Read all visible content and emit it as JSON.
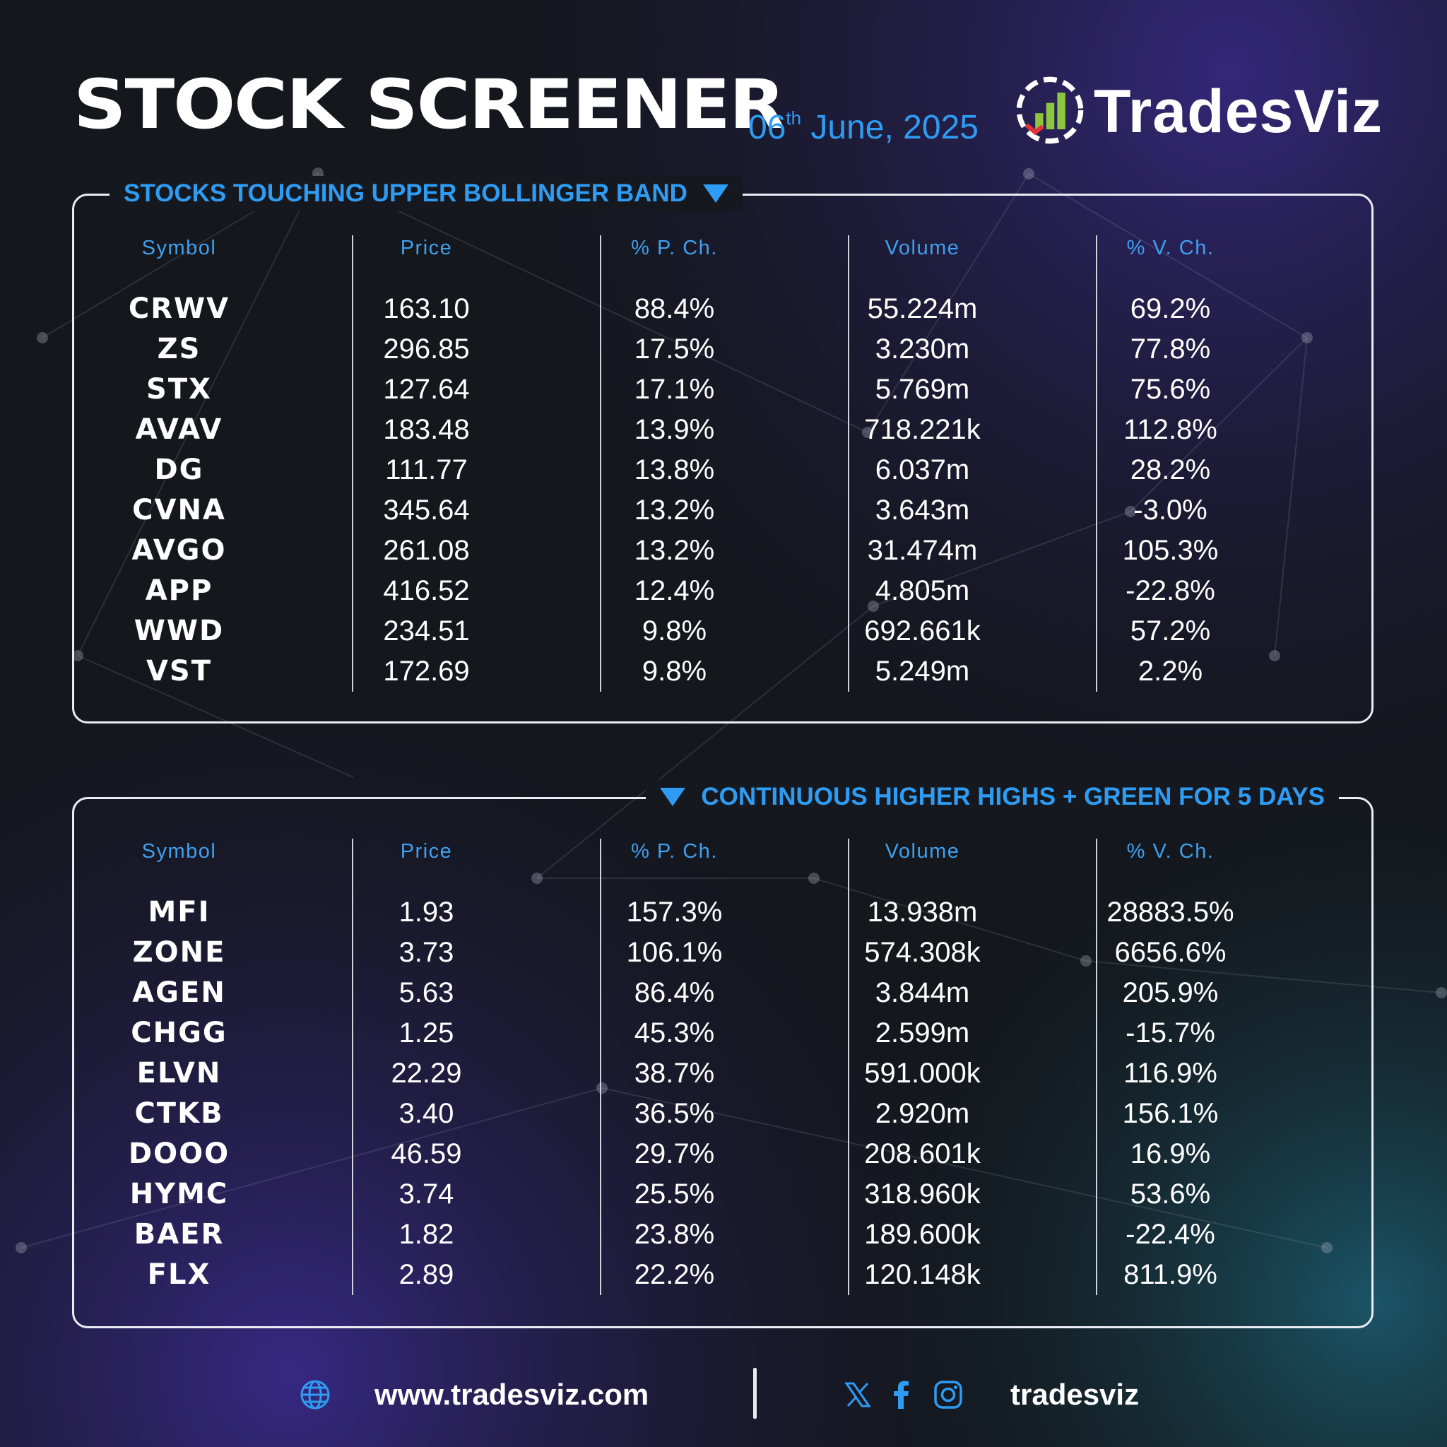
{
  "header": {
    "title": "STOCK SCREENER",
    "date_day": "06",
    "date_suffix": "th",
    "date_rest": " June, 2025",
    "brand": "TradesViz"
  },
  "colors": {
    "accent": "#2f9cf3",
    "logo_green": "#8cc63f",
    "logo_red": "#e2333a"
  },
  "columns": [
    "Symbol",
    "Price",
    "% P. Ch.",
    "Volume",
    "% V. Ch."
  ],
  "panels": [
    {
      "title": "STOCKS TOUCHING UPPER BOLLINGER BAND",
      "rows": [
        [
          "CRWV",
          "163.10",
          "88.4%",
          "55.224m",
          "69.2%"
        ],
        [
          "ZS",
          "296.85",
          "17.5%",
          "3.230m",
          "77.8%"
        ],
        [
          "STX",
          "127.64",
          "17.1%",
          "5.769m",
          "75.6%"
        ],
        [
          "AVAV",
          "183.48",
          "13.9%",
          "718.221k",
          "112.8%"
        ],
        [
          "DG",
          "111.77",
          "13.8%",
          "6.037m",
          "28.2%"
        ],
        [
          "CVNA",
          "345.64",
          "13.2%",
          "3.643m",
          "-3.0%"
        ],
        [
          "AVGO",
          "261.08",
          "13.2%",
          "31.474m",
          "105.3%"
        ],
        [
          "APP",
          "416.52",
          "12.4%",
          "4.805m",
          "-22.8%"
        ],
        [
          "WWD",
          "234.51",
          "9.8%",
          "692.661k",
          "57.2%"
        ],
        [
          "VST",
          "172.69",
          "9.8%",
          "5.249m",
          "2.2%"
        ]
      ]
    },
    {
      "title": "CONTINUOUS HIGHER HIGHS + GREEN FOR 5 DAYS",
      "rows": [
        [
          "MFI",
          "1.93",
          "157.3%",
          "13.938m",
          "28883.5%"
        ],
        [
          "ZONE",
          "3.73",
          "106.1%",
          "574.308k",
          "6656.6%"
        ],
        [
          "AGEN",
          "5.63",
          "86.4%",
          "3.844m",
          "205.9%"
        ],
        [
          "CHGG",
          "1.25",
          "45.3%",
          "2.599m",
          "-15.7%"
        ],
        [
          "ELVN",
          "22.29",
          "38.7%",
          "591.000k",
          "116.9%"
        ],
        [
          "CTKB",
          "3.40",
          "36.5%",
          "2.920m",
          "156.1%"
        ],
        [
          "DOOO",
          "46.59",
          "29.7%",
          "208.601k",
          "16.9%"
        ],
        [
          "HYMC",
          "3.74",
          "25.5%",
          "318.960k",
          "53.6%"
        ],
        [
          "BAER",
          "1.82",
          "23.8%",
          "189.600k",
          "-22.4%"
        ],
        [
          "FLX",
          "2.89",
          "22.2%",
          "120.148k",
          "811.9%"
        ]
      ]
    }
  ],
  "footer": {
    "website": "www.tradesviz.com",
    "handle": "tradesviz",
    "icons": [
      "globe-icon",
      "x-icon",
      "facebook-icon",
      "instagram-icon"
    ]
  }
}
